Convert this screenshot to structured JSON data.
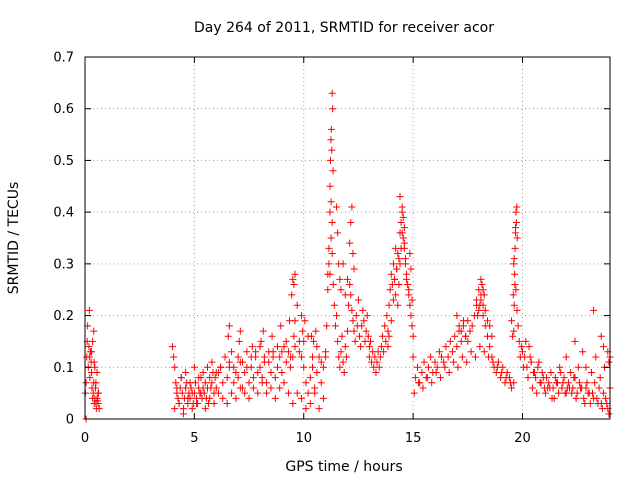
{
  "chart_data": {
    "type": "scatter",
    "title": "Day 264 of 2011, SRMTID for receiver acor",
    "xlabel": "GPS time / hours",
    "ylabel": "SRMTID / TECUs",
    "xlim": [
      0,
      24
    ],
    "ylim": [
      0,
      0.7
    ],
    "xticks": [
      0,
      5,
      10,
      15,
      20
    ],
    "yticks": [
      0,
      0.1,
      0.2,
      0.3,
      0.4,
      0.5,
      0.6,
      0.7
    ],
    "xtick_labels": [
      "0",
      "5",
      "10",
      "15",
      "20"
    ],
    "ytick_labels": [
      "0",
      "0.1",
      "0.2",
      "0.3",
      "0.4",
      "0.5",
      "0.6",
      "0.7"
    ],
    "grid": true,
    "marker": "+",
    "color": "#ff0000",
    "series": [
      {
        "name": "SRMTID",
        "x": [
          0.02,
          0.05,
          0.08,
          0.1,
          0.12,
          0.15,
          0.18,
          0.2,
          0.22,
          0.25,
          0.28,
          0.3,
          0.32,
          0.35,
          0.38,
          0.4,
          0.42,
          0.45,
          0.48,
          0.5,
          0.52,
          0.55,
          0.58,
          0.6,
          0.62,
          0.65,
          0.05,
          0.2,
          0.3,
          0.4,
          0.45,
          0.5,
          0.55,
          0.6,
          0.35,
          0.42,
          4.0,
          4.05,
          4.1,
          4.15,
          4.2,
          4.25,
          4.3,
          4.35,
          4.4,
          4.45,
          4.5,
          4.55,
          4.6,
          4.65,
          4.7,
          4.75,
          4.8,
          4.85,
          4.9,
          4.95,
          5.0,
          5.05,
          5.1,
          5.15,
          5.2,
          5.25,
          5.3,
          5.35,
          5.4,
          5.45,
          5.5,
          5.55,
          5.6,
          5.65,
          5.7,
          5.75,
          5.8,
          5.85,
          5.9,
          5.95,
          6.0,
          6.1,
          6.2,
          6.3,
          6.4,
          6.5,
          6.6,
          6.7,
          6.8,
          6.9,
          7.0,
          7.1,
          7.2,
          7.3,
          7.4,
          7.5,
          7.6,
          7.7,
          7.8,
          7.9,
          8.0,
          8.1,
          8.2,
          8.3,
          8.4,
          8.5,
          8.6,
          8.7,
          8.8,
          8.9,
          9.0,
          9.1,
          9.2,
          9.3,
          9.4,
          9.5,
          9.55,
          9.6,
          9.7,
          9.8,
          9.9,
          10.0,
          10.1,
          10.2,
          10.3,
          10.4,
          10.5,
          10.6,
          10.7,
          10.8,
          10.9,
          11.0,
          4.1,
          4.3,
          4.5,
          4.7,
          4.9,
          5.1,
          5.3,
          5.5,
          5.7,
          5.9,
          6.1,
          6.3,
          6.5,
          6.7,
          6.9,
          7.1,
          7.3,
          7.5,
          7.7,
          7.9,
          8.1,
          8.3,
          8.5,
          8.7,
          8.9,
          9.1,
          9.3,
          9.5,
          9.7,
          9.9,
          10.1,
          10.3,
          10.5,
          10.7,
          10.9,
          4.2,
          4.4,
          4.6,
          4.8,
          5.0,
          5.2,
          5.4,
          5.6,
          5.8,
          6.0,
          6.2,
          6.4,
          6.6,
          6.8,
          7.0,
          7.2,
          7.4,
          7.6,
          7.8,
          8.0,
          8.2,
          8.4,
          8.6,
          8.8,
          9.0,
          9.2,
          9.4,
          9.6,
          9.8,
          10.0,
          10.2,
          10.4,
          10.6,
          10.8,
          6.55,
          6.6,
          7.05,
          7.1,
          7.65,
          8.05,
          8.15,
          8.55,
          8.95,
          9.35,
          9.45,
          9.5,
          9.55,
          9.6,
          9.9,
          9.95,
          10.05,
          10.35,
          10.45,
          10.55,
          11.0,
          11.05,
          11.1,
          11.15,
          11.2,
          11.25,
          11.3,
          11.35,
          11.4,
          11.45,
          11.5,
          11.55,
          11.6,
          11.65,
          11.7,
          11.75,
          11.8,
          11.85,
          11.9,
          11.95,
          12.0,
          12.05,
          12.1,
          12.15,
          12.2,
          12.25,
          12.3,
          12.35,
          12.4,
          12.45,
          12.5,
          12.55,
          12.6,
          12.65,
          12.7,
          12.75,
          12.8,
          12.85,
          12.9,
          12.95,
          13.0,
          11.2,
          11.22,
          11.24,
          11.26,
          11.28,
          11.3,
          11.32,
          11.34,
          11.2,
          11.25,
          11.3,
          11.1,
          11.15,
          11.5,
          11.55,
          11.6,
          11.65,
          11.7,
          12.1,
          12.15,
          12.2,
          12.25,
          12.3,
          12.0,
          11.9,
          11.8,
          13.0,
          13.05,
          13.1,
          13.15,
          13.2,
          13.25,
          13.3,
          13.35,
          13.4,
          13.45,
          13.5,
          13.55,
          13.6,
          13.65,
          13.7,
          13.75,
          13.8,
          13.85,
          13.9,
          13.95,
          14.0,
          14.05,
          14.1,
          14.15,
          14.2,
          14.25,
          14.3,
          14.35,
          14.4,
          14.45,
          14.5,
          14.55,
          14.6,
          14.65,
          14.7,
          14.75,
          14.8,
          14.85,
          14.9,
          14.95,
          15.0,
          14.3,
          14.35,
          14.4,
          14.45,
          14.5,
          14.55,
          14.6,
          14.65,
          14.7,
          14.4,
          14.5,
          14.6,
          14.1,
          14.15,
          14.2,
          14.25,
          14.0,
          13.9,
          13.85,
          14.8,
          14.85,
          14.9,
          14.95,
          15.0,
          15.1,
          15.2,
          15.3,
          15.4,
          15.5,
          15.6,
          15.7,
          15.8,
          15.9,
          16.0,
          16.1,
          16.2,
          16.3,
          16.4,
          16.5,
          16.6,
          16.7,
          16.8,
          16.9,
          17.0,
          17.1,
          17.2,
          17.3,
          17.4,
          17.5,
          17.6,
          17.7,
          17.8,
          17.9,
          18.0,
          18.1,
          18.2,
          18.3,
          18.4,
          18.5,
          18.6,
          18.7,
          18.8,
          18.9,
          19.0,
          19.1,
          19.2,
          19.3,
          19.4,
          19.5,
          19.6,
          15.05,
          15.25,
          15.45,
          15.65,
          15.85,
          16.05,
          16.25,
          16.45,
          16.65,
          16.85,
          17.05,
          17.25,
          17.45,
          17.65,
          17.85,
          18.05,
          18.25,
          18.45,
          18.65,
          18.85,
          19.05,
          19.25,
          19.45,
          17.0,
          17.1,
          17.2,
          17.3,
          17.4,
          17.5,
          17.9,
          18.0,
          18.1,
          18.2,
          18.3,
          18.4,
          18.5,
          18.6,
          18.1,
          18.15,
          18.2,
          18.25,
          17.95,
          18.05,
          19.6,
          19.62,
          19.64,
          19.66,
          19.68,
          19.7,
          19.72,
          19.74,
          19.76,
          19.6,
          19.65,
          19.7,
          19.75,
          19.8,
          19.85,
          19.9,
          19.95,
          19.55,
          19.5,
          19.58,
          19.62,
          19.68,
          20.0,
          20.1,
          20.2,
          20.3,
          20.4,
          20.5,
          20.6,
          20.7,
          20.8,
          20.9,
          21.0,
          21.1,
          21.2,
          21.3,
          21.4,
          21.5,
          21.6,
          21.7,
          21.8,
          21.9,
          22.0,
          22.1,
          22.2,
          22.3,
          22.4,
          22.5,
          22.6,
          22.7,
          22.8,
          22.9,
          23.0,
          23.1,
          23.2,
          23.3,
          23.4,
          23.5,
          23.6,
          23.7,
          23.8,
          23.9,
          24.0,
          20.05,
          20.25,
          20.45,
          20.65,
          20.85,
          21.05,
          21.25,
          21.45,
          21.65,
          21.85,
          22.05,
          22.25,
          22.45,
          22.65,
          22.85,
          23.05,
          23.25,
          23.45,
          23.65,
          23.85,
          20.15,
          20.35,
          20.55,
          20.75,
          20.95,
          21.15,
          21.35,
          21.55,
          21.75,
          21.95,
          22.15,
          22.35,
          22.55,
          22.75,
          22.95,
          23.15,
          23.35,
          23.55,
          23.75,
          23.95,
          23.25,
          23.6,
          23.7,
          23.9,
          23.95,
          24.0,
          22.0,
          22.4,
          22.9
        ],
        "y": [
          0.05,
          0.07,
          0.12,
          0.15,
          0.18,
          0.1,
          0.14,
          0.12,
          0.08,
          0.13,
          0.11,
          0.09,
          0.06,
          0.04,
          0.05,
          0.07,
          0.03,
          0.04,
          0.06,
          0.03,
          0.02,
          0.04,
          0.035,
          0.03,
          0.05,
          0.02,
          0.0,
          0.21,
          0.13,
          0.17,
          0.1,
          0.07,
          0.09,
          0.05,
          0.15,
          0.11,
          0.14,
          0.12,
          0.1,
          0.07,
          0.05,
          0.04,
          0.03,
          0.06,
          0.08,
          0.05,
          0.02,
          0.04,
          0.06,
          0.07,
          0.03,
          0.05,
          0.04,
          0.06,
          0.05,
          0.03,
          0.05,
          0.07,
          0.04,
          0.03,
          0.06,
          0.05,
          0.08,
          0.04,
          0.06,
          0.05,
          0.07,
          0.04,
          0.06,
          0.03,
          0.08,
          0.06,
          0.07,
          0.09,
          0.05,
          0.08,
          0.06,
          0.09,
          0.1,
          0.07,
          0.12,
          0.08,
          0.1,
          0.13,
          0.07,
          0.09,
          0.08,
          0.11,
          0.06,
          0.09,
          0.1,
          0.07,
          0.12,
          0.08,
          0.13,
          0.09,
          0.1,
          0.08,
          0.12,
          0.07,
          0.11,
          0.09,
          0.13,
          0.08,
          0.1,
          0.12,
          0.09,
          0.14,
          0.11,
          0.13,
          0.1,
          0.12,
          0.16,
          0.19,
          0.22,
          0.15,
          0.12,
          0.1,
          0.07,
          0.05,
          0.08,
          0.1,
          0.06,
          0.09,
          0.12,
          0.07,
          0.1,
          0.13,
          0.02,
          0.03,
          0.01,
          0.04,
          0.02,
          0.03,
          0.05,
          0.02,
          0.04,
          0.03,
          0.05,
          0.04,
          0.03,
          0.05,
          0.04,
          0.06,
          0.05,
          0.04,
          0.06,
          0.05,
          0.07,
          0.05,
          0.06,
          0.04,
          0.06,
          0.07,
          0.05,
          0.03,
          0.05,
          0.04,
          0.02,
          0.03,
          0.05,
          0.02,
          0.04,
          0.06,
          0.08,
          0.09,
          0.07,
          0.1,
          0.08,
          0.09,
          0.1,
          0.11,
          0.09,
          0.1,
          0.12,
          0.11,
          0.1,
          0.12,
          0.11,
          0.13,
          0.1,
          0.12,
          0.14,
          0.11,
          0.13,
          0.12,
          0.14,
          0.13,
          0.15,
          0.12,
          0.14,
          0.13,
          0.15,
          0.16,
          0.12,
          0.14,
          0.11,
          0.16,
          0.18,
          0.15,
          0.17,
          0.14,
          0.15,
          0.17,
          0.16,
          0.18,
          0.19,
          0.24,
          0.27,
          0.26,
          0.28,
          0.2,
          0.17,
          0.19,
          0.16,
          0.15,
          0.17,
          0.12,
          0.18,
          0.25,
          0.3,
          0.28,
          0.35,
          0.32,
          0.26,
          0.22,
          0.18,
          0.2,
          0.15,
          0.12,
          0.1,
          0.13,
          0.16,
          0.11,
          0.09,
          0.14,
          0.12,
          0.17,
          0.22,
          0.26,
          0.24,
          0.21,
          0.19,
          0.17,
          0.15,
          0.2,
          0.18,
          0.23,
          0.16,
          0.14,
          0.18,
          0.21,
          0.19,
          0.15,
          0.17,
          0.2,
          0.16,
          0.14,
          0.45,
          0.5,
          0.54,
          0.56,
          0.52,
          0.63,
          0.6,
          0.48,
          0.4,
          0.42,
          0.38,
          0.28,
          0.33,
          0.41,
          0.36,
          0.3,
          0.27,
          0.25,
          0.34,
          0.38,
          0.41,
          0.32,
          0.29,
          0.27,
          0.24,
          0.3,
          0.12,
          0.15,
          0.11,
          0.13,
          0.1,
          0.12,
          0.09,
          0.11,
          0.13,
          0.1,
          0.12,
          0.14,
          0.16,
          0.13,
          0.18,
          0.15,
          0.2,
          0.17,
          0.22,
          0.25,
          0.28,
          0.26,
          0.3,
          0.27,
          0.33,
          0.29,
          0.32,
          0.31,
          0.36,
          0.38,
          0.4,
          0.35,
          0.33,
          0.3,
          0.28,
          0.26,
          0.24,
          0.22,
          0.2,
          0.18,
          0.16,
          0.22,
          0.26,
          0.3,
          0.33,
          0.36,
          0.39,
          0.34,
          0.31,
          0.27,
          0.43,
          0.41,
          0.37,
          0.23,
          0.27,
          0.24,
          0.29,
          0.19,
          0.16,
          0.14,
          0.25,
          0.32,
          0.29,
          0.23,
          0.12,
          0.08,
          0.1,
          0.07,
          0.09,
          0.11,
          0.08,
          0.1,
          0.12,
          0.09,
          0.11,
          0.1,
          0.13,
          0.12,
          0.11,
          0.14,
          0.12,
          0.15,
          0.13,
          0.16,
          0.14,
          0.17,
          0.15,
          0.18,
          0.16,
          0.19,
          0.17,
          0.18,
          0.2,
          0.22,
          0.21,
          0.23,
          0.2,
          0.18,
          0.16,
          0.14,
          0.12,
          0.1,
          0.09,
          0.11,
          0.08,
          0.1,
          0.07,
          0.09,
          0.08,
          0.06,
          0.07,
          0.05,
          0.07,
          0.06,
          0.08,
          0.07,
          0.09,
          0.08,
          0.1,
          0.09,
          0.11,
          0.1,
          0.12,
          0.11,
          0.13,
          0.12,
          0.14,
          0.13,
          0.12,
          0.11,
          0.1,
          0.09,
          0.08,
          0.07,
          0.2,
          0.18,
          0.17,
          0.19,
          0.16,
          0.15,
          0.23,
          0.25,
          0.24,
          0.22,
          0.21,
          0.19,
          0.18,
          0.16,
          0.27,
          0.26,
          0.25,
          0.24,
          0.2,
          0.22,
          0.17,
          0.22,
          0.28,
          0.33,
          0.37,
          0.4,
          0.38,
          0.41,
          0.35,
          0.3,
          0.26,
          0.25,
          0.21,
          0.18,
          0.15,
          0.12,
          0.14,
          0.16,
          0.19,
          0.24,
          0.31,
          0.36,
          0.13,
          0.12,
          0.1,
          0.14,
          0.11,
          0.09,
          0.08,
          0.1,
          0.07,
          0.09,
          0.06,
          0.08,
          0.07,
          0.09,
          0.06,
          0.08,
          0.07,
          0.1,
          0.06,
          0.08,
          0.05,
          0.07,
          0.09,
          0.06,
          0.08,
          0.05,
          0.07,
          0.06,
          0.04,
          0.06,
          0.05,
          0.03,
          0.05,
          0.07,
          0.04,
          0.06,
          0.03,
          0.05,
          0.04,
          0.02,
          0.06,
          0.1,
          0.08,
          0.06,
          0.05,
          0.07,
          0.05,
          0.06,
          0.04,
          0.05,
          0.07,
          0.06,
          0.05,
          0.04,
          0.06,
          0.03,
          0.05,
          0.04,
          0.03,
          0.02,
          0.03,
          0.15,
          0.12,
          0.09,
          0.11,
          0.08,
          0.06,
          0.04,
          0.07,
          0.09,
          0.05,
          0.06,
          0.08,
          0.1,
          0.13,
          0.07,
          0.09,
          0.12,
          0.08,
          0.1,
          0.01,
          0.21,
          0.16,
          0.14,
          0.13,
          0.11,
          0.12,
          0.12,
          0.15,
          0.1
        ]
      }
    ]
  }
}
